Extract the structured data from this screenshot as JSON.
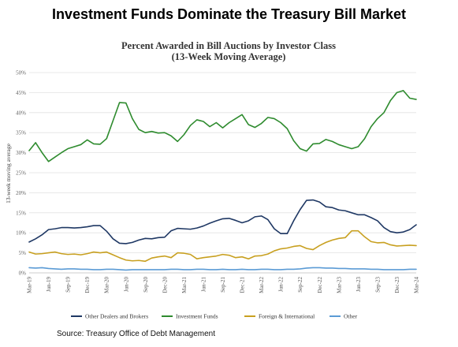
{
  "headline": "Investment Funds Dominate the Treasury Bill Market",
  "source": "Source:  Treasury Office of Debt Management",
  "chart_data": {
    "type": "line",
    "title": "Percent Awarded in Bill Auctions by Investor Class",
    "subtitle": "(13-Week Moving Average)",
    "ylabel": "13-week moving average",
    "xlabel": "",
    "ylim": [
      0,
      50
    ],
    "yticks": [
      0,
      5,
      10,
      15,
      20,
      25,
      30,
      35,
      40,
      45,
      50
    ],
    "ytick_labels": [
      "0%",
      "5%",
      "10%",
      "15%",
      "20%",
      "25%",
      "30%",
      "35%",
      "40%",
      "45%",
      "50%"
    ],
    "x": [
      "Mar-19",
      "Apr-19",
      "May-19",
      "Jun-19",
      "Jul-19",
      "Aug-19",
      "Sep-19",
      "Oct-19",
      "Nov-19",
      "Dec-19",
      "Jan-20",
      "Feb-20",
      "Mar-20",
      "Apr-20",
      "May-20",
      "Jun-20",
      "Jul-20",
      "Aug-20",
      "Sep-20",
      "Oct-20",
      "Nov-20",
      "Dec-20",
      "Jan-21",
      "Feb-21",
      "Mar-21",
      "Apr-21",
      "May-21",
      "Jun-21",
      "Jul-21",
      "Aug-21",
      "Sep-21",
      "Oct-21",
      "Nov-21",
      "Dec-21",
      "Jan-22",
      "Feb-22",
      "Mar-22",
      "Apr-22",
      "May-22",
      "Jun-22",
      "Jul-22",
      "Aug-22",
      "Sep-22",
      "Oct-22",
      "Nov-22",
      "Dec-22",
      "Jan-23",
      "Feb-23",
      "Mar-23",
      "Apr-23",
      "May-23",
      "Jun-23",
      "Jul-23",
      "Aug-23",
      "Sep-23",
      "Oct-23",
      "Nov-23",
      "Dec-23",
      "Jan-24",
      "Feb-24",
      "Mar-24"
    ],
    "xtick_labels": [
      "Mar-19",
      "Jun-19",
      "Sep-19",
      "Dec-19",
      "Mar-20",
      "Jun-20",
      "Sep-20",
      "Dec-20",
      "Mar-21",
      "Jun-21",
      "Sep-21",
      "Dec-21",
      "Mar-22",
      "Jun-22",
      "Sep-22",
      "Dec-22",
      "Mar-23",
      "Jun-23",
      "Sep-23",
      "Dec-23",
      "Mar-24"
    ],
    "legend_position": "bottom",
    "grid": "horizontal",
    "series": [
      {
        "name": "Other Dealers and Brokers",
        "color": "#1f3864",
        "values": [
          7.7,
          8.5,
          9.5,
          10.8,
          11.0,
          11.3,
          11.3,
          11.2,
          11.3,
          11.5,
          11.8,
          11.8,
          10.4,
          8.5,
          7.4,
          7.3,
          7.6,
          8.2,
          8.6,
          8.5,
          8.8,
          8.9,
          10.5,
          11.1,
          11.0,
          10.9,
          11.2,
          11.7,
          12.4,
          13.0,
          13.5,
          13.6,
          13.1,
          12.5,
          13.0,
          14.0,
          14.2,
          13.3,
          11.0,
          9.8,
          9.8,
          13.0,
          15.8,
          18.1,
          18.2,
          17.7,
          16.5,
          16.3,
          15.7,
          15.5,
          15.0,
          14.5,
          14.5,
          13.8,
          13.0,
          11.3,
          10.3,
          10.0,
          10.2,
          10.8,
          12.0
        ]
      },
      {
        "name": "Investment Funds",
        "color": "#2e8b2e",
        "values": [
          30.5,
          32.5,
          30.0,
          27.8,
          28.9,
          30.0,
          31.0,
          31.5,
          32.0,
          33.2,
          32.2,
          32.1,
          33.5,
          38.0,
          42.5,
          42.4,
          38.5,
          35.8,
          35.0,
          35.3,
          34.9,
          35.0,
          34.2,
          32.8,
          34.5,
          36.8,
          38.2,
          37.8,
          36.5,
          37.5,
          36.2,
          37.5,
          38.5,
          39.5,
          37.0,
          36.3,
          37.3,
          38.8,
          38.5,
          37.5,
          36.0,
          33.0,
          31.0,
          30.4,
          32.2,
          32.3,
          33.3,
          32.8,
          32.0,
          31.5,
          31.0,
          31.5,
          33.5,
          36.5,
          38.5,
          40.0,
          43.0,
          45.0,
          45.5,
          43.6,
          43.3
        ]
      },
      {
        "name": "Foreign & International",
        "color": "#c8a020",
        "values": [
          5.2,
          4.7,
          4.8,
          5.0,
          5.2,
          4.8,
          4.6,
          4.7,
          4.5,
          4.8,
          5.2,
          5.0,
          5.2,
          4.5,
          3.8,
          3.2,
          3.0,
          3.1,
          2.9,
          3.7,
          4.0,
          4.2,
          3.8,
          5.0,
          4.9,
          4.6,
          3.5,
          3.8,
          4.0,
          4.2,
          4.6,
          4.4,
          3.8,
          4.0,
          3.5,
          4.2,
          4.3,
          4.7,
          5.5,
          6.0,
          6.2,
          6.6,
          6.8,
          6.1,
          5.8,
          6.8,
          7.6,
          8.2,
          8.6,
          8.8,
          10.5,
          10.5,
          9.0,
          7.8,
          7.5,
          7.6,
          7.0,
          6.7,
          6.8,
          6.9,
          6.8
        ]
      },
      {
        "name": "Other",
        "color": "#5b9bd5",
        "values": [
          1.3,
          1.2,
          1.3,
          1.1,
          1.0,
          0.9,
          1.0,
          1.0,
          0.9,
          0.9,
          0.8,
          0.8,
          0.9,
          0.9,
          0.8,
          0.7,
          0.8,
          0.8,
          0.8,
          0.8,
          0.8,
          0.8,
          0.9,
          0.9,
          0.8,
          0.8,
          0.9,
          0.9,
          0.8,
          0.8,
          0.9,
          0.8,
          0.8,
          0.9,
          0.8,
          0.8,
          0.9,
          0.9,
          0.8,
          0.8,
          0.9,
          0.9,
          1.0,
          1.2,
          1.3,
          1.3,
          1.2,
          1.2,
          1.1,
          1.1,
          1.0,
          1.0,
          1.0,
          0.9,
          0.9,
          0.8,
          0.8,
          0.8,
          0.8,
          0.9,
          0.9
        ]
      }
    ]
  }
}
